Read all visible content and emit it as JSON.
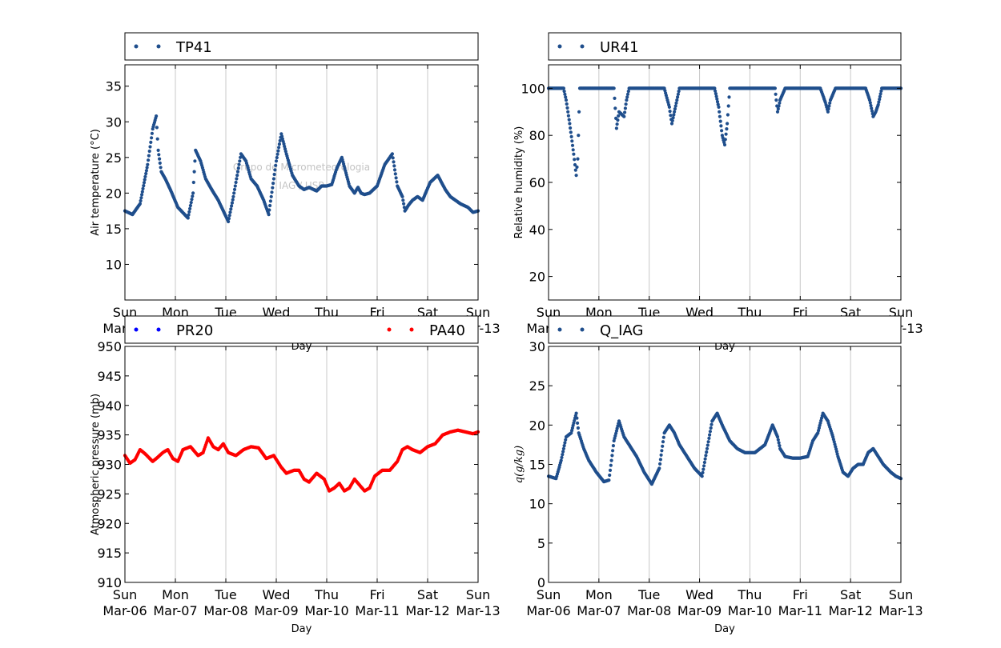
{
  "chart_data": [
    {
      "id": "tl",
      "type": "scatter",
      "legend": [
        "TP41"
      ],
      "ylabel": "Air temperature (°C)",
      "xlabel": "Day",
      "ylim": [
        5,
        38
      ],
      "yticks": [
        "10",
        "15",
        "20",
        "25",
        "30",
        "35"
      ],
      "ytick_values": [
        10,
        15,
        20,
        25,
        30,
        35
      ],
      "watermark": [
        "Grupo de Micrometeorologia",
        "IAG / USP"
      ],
      "series": [
        {
          "name": "TP41",
          "color": "#1f4e8c",
          "x": [
            0,
            0.15,
            0.3,
            0.45,
            0.55,
            0.62,
            0.66,
            0.72,
            0.8,
            0.9,
            1.05,
            1.25,
            1.35,
            1.4,
            1.5,
            1.6,
            1.72,
            1.85,
            1.95,
            2.05,
            2.15,
            2.3,
            2.4,
            2.5,
            2.62,
            2.75,
            2.85,
            3.0,
            3.1,
            3.2,
            3.32,
            3.45,
            3.55,
            3.65,
            3.8,
            3.9,
            4.0,
            4.1,
            4.2,
            4.3,
            4.45,
            4.55,
            4.62,
            4.68,
            4.75,
            4.85,
            5.0,
            5.15,
            5.3,
            5.4,
            5.5,
            5.55,
            5.62,
            5.7,
            5.8,
            5.9,
            6.05,
            6.2,
            6.35,
            6.45,
            6.55,
            6.65,
            6.8,
            6.9,
            7.0
          ],
          "values": [
            17.5,
            17.0,
            18.5,
            24.0,
            29.0,
            30.8,
            26.0,
            23.0,
            22.0,
            20.5,
            18.0,
            16.5,
            20.0,
            26.0,
            24.5,
            22.0,
            20.5,
            19.0,
            17.5,
            16.0,
            19.5,
            25.5,
            24.5,
            22.0,
            21.0,
            19.0,
            17.0,
            24.5,
            28.3,
            25.5,
            22.5,
            21.0,
            20.5,
            20.8,
            20.3,
            21.0,
            21.0,
            21.2,
            23.5,
            25.0,
            21.0,
            20.0,
            20.8,
            20.0,
            19.8,
            20.0,
            21.0,
            24.0,
            25.5,
            21.0,
            19.5,
            17.5,
            18.3,
            19.0,
            19.5,
            19.0,
            21.5,
            22.5,
            20.5,
            19.5,
            19.0,
            18.5,
            18.0,
            17.3,
            17.5
          ]
        }
      ]
    },
    {
      "id": "tr",
      "type": "scatter",
      "legend": [
        "UR41"
      ],
      "ylabel": "Relative humidity (%)",
      "xlabel": "Day",
      "ylim": [
        10,
        110
      ],
      "yticks": [
        "20",
        "40",
        "60",
        "80",
        "100"
      ],
      "ytick_values": [
        20,
        40,
        60,
        80,
        100
      ],
      "series": [
        {
          "name": "UR41",
          "color": "#1f4e8c",
          "x": [
            0,
            0.3,
            0.35,
            0.42,
            0.5,
            0.55,
            0.58,
            0.62,
            0.7,
            0.85,
            1.1,
            1.3,
            1.35,
            1.4,
            1.5,
            1.55,
            1.6,
            1.7,
            2.3,
            2.4,
            2.45,
            2.5,
            2.55,
            2.6,
            2.7,
            3.3,
            3.38,
            3.45,
            3.5,
            3.55,
            3.6,
            3.7,
            4.5,
            4.55,
            4.6,
            4.7,
            5.4,
            5.5,
            5.55,
            5.6,
            5.7,
            6.3,
            6.38,
            6.45,
            6.5,
            6.55,
            6.62,
            6.7,
            7.0
          ],
          "values": [
            100,
            100,
            95,
            85,
            72,
            63,
            70,
            100,
            100,
            100,
            100,
            100,
            83,
            90,
            88,
            95,
            100,
            100,
            100,
            92,
            85,
            90,
            95,
            100,
            100,
            100,
            92,
            80,
            76,
            85,
            100,
            100,
            100,
            90,
            95,
            100,
            100,
            94,
            90,
            95,
            100,
            100,
            95,
            88,
            90,
            93,
            100,
            100,
            100
          ]
        }
      ]
    },
    {
      "id": "bl",
      "type": "scatter",
      "legend": [
        "PR20",
        "PA40"
      ],
      "ylabel": "Atmospheric pressure (mb)",
      "xlabel": "Day",
      "ylim": [
        910,
        950
      ],
      "yticks": [
        "910",
        "915",
        "920",
        "925",
        "930",
        "935",
        "940",
        "945",
        "950"
      ],
      "ytick_values": [
        910,
        915,
        920,
        925,
        930,
        935,
        940,
        945,
        950
      ],
      "series": [
        {
          "name": "PR20",
          "color": "#0000ff",
          "x": [],
          "values": []
        },
        {
          "name": "PA40",
          "color": "#ff0000",
          "x": [
            0,
            0.1,
            0.2,
            0.3,
            0.4,
            0.55,
            0.65,
            0.75,
            0.85,
            0.95,
            1.05,
            1.15,
            1.3,
            1.45,
            1.55,
            1.65,
            1.75,
            1.85,
            1.95,
            2.05,
            2.2,
            2.35,
            2.5,
            2.65,
            2.8,
            2.95,
            3.1,
            3.2,
            3.35,
            3.45,
            3.55,
            3.65,
            3.8,
            3.95,
            4.05,
            4.15,
            4.25,
            4.35,
            4.45,
            4.55,
            4.65,
            4.75,
            4.85,
            4.95,
            5.1,
            5.25,
            5.4,
            5.5,
            5.6,
            5.7,
            5.85,
            6.0,
            6.15,
            6.3,
            6.45,
            6.6,
            6.75,
            6.9,
            7.0
          ],
          "values": [
            931.5,
            930.2,
            930.8,
            932.5,
            931.8,
            930.5,
            931.2,
            932.0,
            932.5,
            931.0,
            930.5,
            932.5,
            933.0,
            931.5,
            932.0,
            934.5,
            933.0,
            932.5,
            933.5,
            932.0,
            931.5,
            932.5,
            933.0,
            932.8,
            931.0,
            931.5,
            929.5,
            928.5,
            929.0,
            929.0,
            927.5,
            927.0,
            928.5,
            927.5,
            925.5,
            926.0,
            926.8,
            925.5,
            926.0,
            927.5,
            926.5,
            925.5,
            926.0,
            928.0,
            929.0,
            929.0,
            930.5,
            932.5,
            933.0,
            932.5,
            932.0,
            933.0,
            933.5,
            935.0,
            935.5,
            935.8,
            935.5,
            935.2,
            935.5
          ]
        }
      ]
    },
    {
      "id": "br",
      "type": "scatter",
      "legend": [
        "Q_IAG"
      ],
      "ylabel": "q(g/kg)",
      "xlabel": "Day",
      "ylim": [
        0,
        30
      ],
      "yticks": [
        "0",
        "5",
        "10",
        "15",
        "20",
        "25",
        "30"
      ],
      "ytick_values": [
        0,
        5,
        10,
        15,
        20,
        25,
        30
      ],
      "series": [
        {
          "name": "Q_IAG",
          "color": "#1f4e8c",
          "x": [
            0,
            0.15,
            0.25,
            0.35,
            0.45,
            0.55,
            0.6,
            0.7,
            0.8,
            0.95,
            1.1,
            1.2,
            1.3,
            1.4,
            1.5,
            1.6,
            1.75,
            1.9,
            2.05,
            2.2,
            2.3,
            2.4,
            2.5,
            2.6,
            2.75,
            2.9,
            3.05,
            3.15,
            3.25,
            3.35,
            3.45,
            3.6,
            3.75,
            3.9,
            4.0,
            4.1,
            4.2,
            4.3,
            4.45,
            4.55,
            4.6,
            4.7,
            4.85,
            5.0,
            5.15,
            5.25,
            5.35,
            5.45,
            5.55,
            5.65,
            5.75,
            5.85,
            5.95,
            6.05,
            6.15,
            6.25,
            6.35,
            6.45,
            6.55,
            6.65,
            6.8,
            6.9,
            7.0
          ],
          "values": [
            13.5,
            13.2,
            15.5,
            18.5,
            19.0,
            21.5,
            19.0,
            17.0,
            15.5,
            14.0,
            12.8,
            13.0,
            18.0,
            20.5,
            18.5,
            17.5,
            16.0,
            14.0,
            12.5,
            14.5,
            19.0,
            20.0,
            19.0,
            17.5,
            16.0,
            14.5,
            13.5,
            17.0,
            20.5,
            21.5,
            20.0,
            18.0,
            17.0,
            16.5,
            16.5,
            16.5,
            17.0,
            17.5,
            20.0,
            18.5,
            17.0,
            16.0,
            15.8,
            15.8,
            16.0,
            18.0,
            19.0,
            21.5,
            20.5,
            18.5,
            16.0,
            14.0,
            13.5,
            14.5,
            15.0,
            15.0,
            16.5,
            17.0,
            16.0,
            15.0,
            14.0,
            13.5,
            13.2
          ]
        }
      ]
    }
  ],
  "xaxis": {
    "days": [
      "Sun",
      "Mon",
      "Tue",
      "Wed",
      "Thu",
      "Fri",
      "Sat",
      "Sun"
    ],
    "dates": [
      "Mar-06",
      "Mar-07",
      "Mar-08",
      "Mar-09",
      "Mar-10",
      "Mar-11",
      "Mar-12",
      "Mar-13"
    ]
  }
}
